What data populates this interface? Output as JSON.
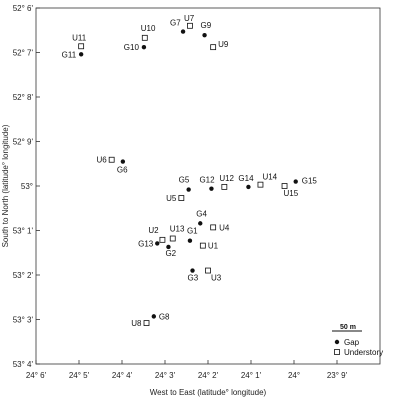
{
  "chart_data": {
    "type": "scatter",
    "xlabel": "West to East (latitude° longitude)",
    "ylabel": "South to North (latitude° longitude)",
    "xlim": [
      0,
      8
    ],
    "ylim": [
      0,
      8
    ],
    "x_ticks": [
      {
        "v": 0,
        "label": "24° 6'"
      },
      {
        "v": 1,
        "label": "24° 5'"
      },
      {
        "v": 2,
        "label": "24° 4'"
      },
      {
        "v": 3,
        "label": "24° 3'"
      },
      {
        "v": 4,
        "label": "24° 2'"
      },
      {
        "v": 5,
        "label": "24° 1'"
      },
      {
        "v": 6,
        "label": "24°"
      },
      {
        "v": 7,
        "label": "23° 9'"
      }
    ],
    "y_ticks": [
      {
        "v": 0,
        "label": "53° 4'"
      },
      {
        "v": 1,
        "label": "53° 3'"
      },
      {
        "v": 2,
        "label": "53° 2'"
      },
      {
        "v": 3,
        "label": "53° 1'"
      },
      {
        "v": 4,
        "label": "53°"
      },
      {
        "v": 5,
        "label": "52° 9'"
      },
      {
        "v": 6,
        "label": "52° 8'"
      },
      {
        "v": 7,
        "label": "52° 7'"
      },
      {
        "v": 8,
        "label": "52° 6'"
      }
    ],
    "legend": {
      "placement": "bottom-right",
      "scale_label": "50 m",
      "items": [
        {
          "name": "Gap",
          "marker": "filled-circle"
        },
        {
          "name": "Understory",
          "marker": "open-square"
        }
      ]
    },
    "series": [
      {
        "name": "Gap",
        "marker": "filled-circle",
        "points": [
          {
            "label": "G1",
            "x": 3.58,
            "y": 2.77
          },
          {
            "label": "G2",
            "x": 3.08,
            "y": 2.63
          },
          {
            "label": "G3",
            "x": 3.64,
            "y": 2.1
          },
          {
            "label": "G4",
            "x": 3.82,
            "y": 3.16
          },
          {
            "label": "G5",
            "x": 3.55,
            "y": 3.92
          },
          {
            "label": "G6",
            "x": 2.02,
            "y": 4.55
          },
          {
            "label": "G7",
            "x": 3.42,
            "y": 7.47
          },
          {
            "label": "G8",
            "x": 2.74,
            "y": 1.07
          },
          {
            "label": "G9",
            "x": 3.92,
            "y": 7.39
          },
          {
            "label": "G10",
            "x": 2.51,
            "y": 7.12
          },
          {
            "label": "G11",
            "x": 1.05,
            "y": 6.96
          },
          {
            "label": "G12",
            "x": 4.08,
            "y": 3.94
          },
          {
            "label": "G13",
            "x": 2.82,
            "y": 2.71
          },
          {
            "label": "G14",
            "x": 4.94,
            "y": 3.98
          },
          {
            "label": "G15",
            "x": 6.04,
            "y": 4.1
          }
        ]
      },
      {
        "name": "Understory",
        "marker": "open-square",
        "points": [
          {
            "label": "U1",
            "x": 3.88,
            "y": 2.66
          },
          {
            "label": "U2",
            "x": 2.94,
            "y": 2.79
          },
          {
            "label": "U3",
            "x": 4.0,
            "y": 2.1
          },
          {
            "label": "U4",
            "x": 4.12,
            "y": 3.07
          },
          {
            "label": "U5",
            "x": 3.38,
            "y": 3.73
          },
          {
            "label": "U6",
            "x": 1.76,
            "y": 4.59
          },
          {
            "label": "U7",
            "x": 3.58,
            "y": 7.6
          },
          {
            "label": "U8",
            "x": 2.57,
            "y": 0.92
          },
          {
            "label": "U9",
            "x": 4.12,
            "y": 7.12
          },
          {
            "label": "U10",
            "x": 2.53,
            "y": 7.33
          },
          {
            "label": "U11",
            "x": 1.05,
            "y": 7.14
          },
          {
            "label": "U12",
            "x": 4.38,
            "y": 3.98
          },
          {
            "label": "U13",
            "x": 3.18,
            "y": 2.82
          },
          {
            "label": "U14",
            "x": 5.22,
            "y": 4.03
          },
          {
            "label": "U15",
            "x": 5.78,
            "y": 4.0
          }
        ]
      }
    ]
  }
}
